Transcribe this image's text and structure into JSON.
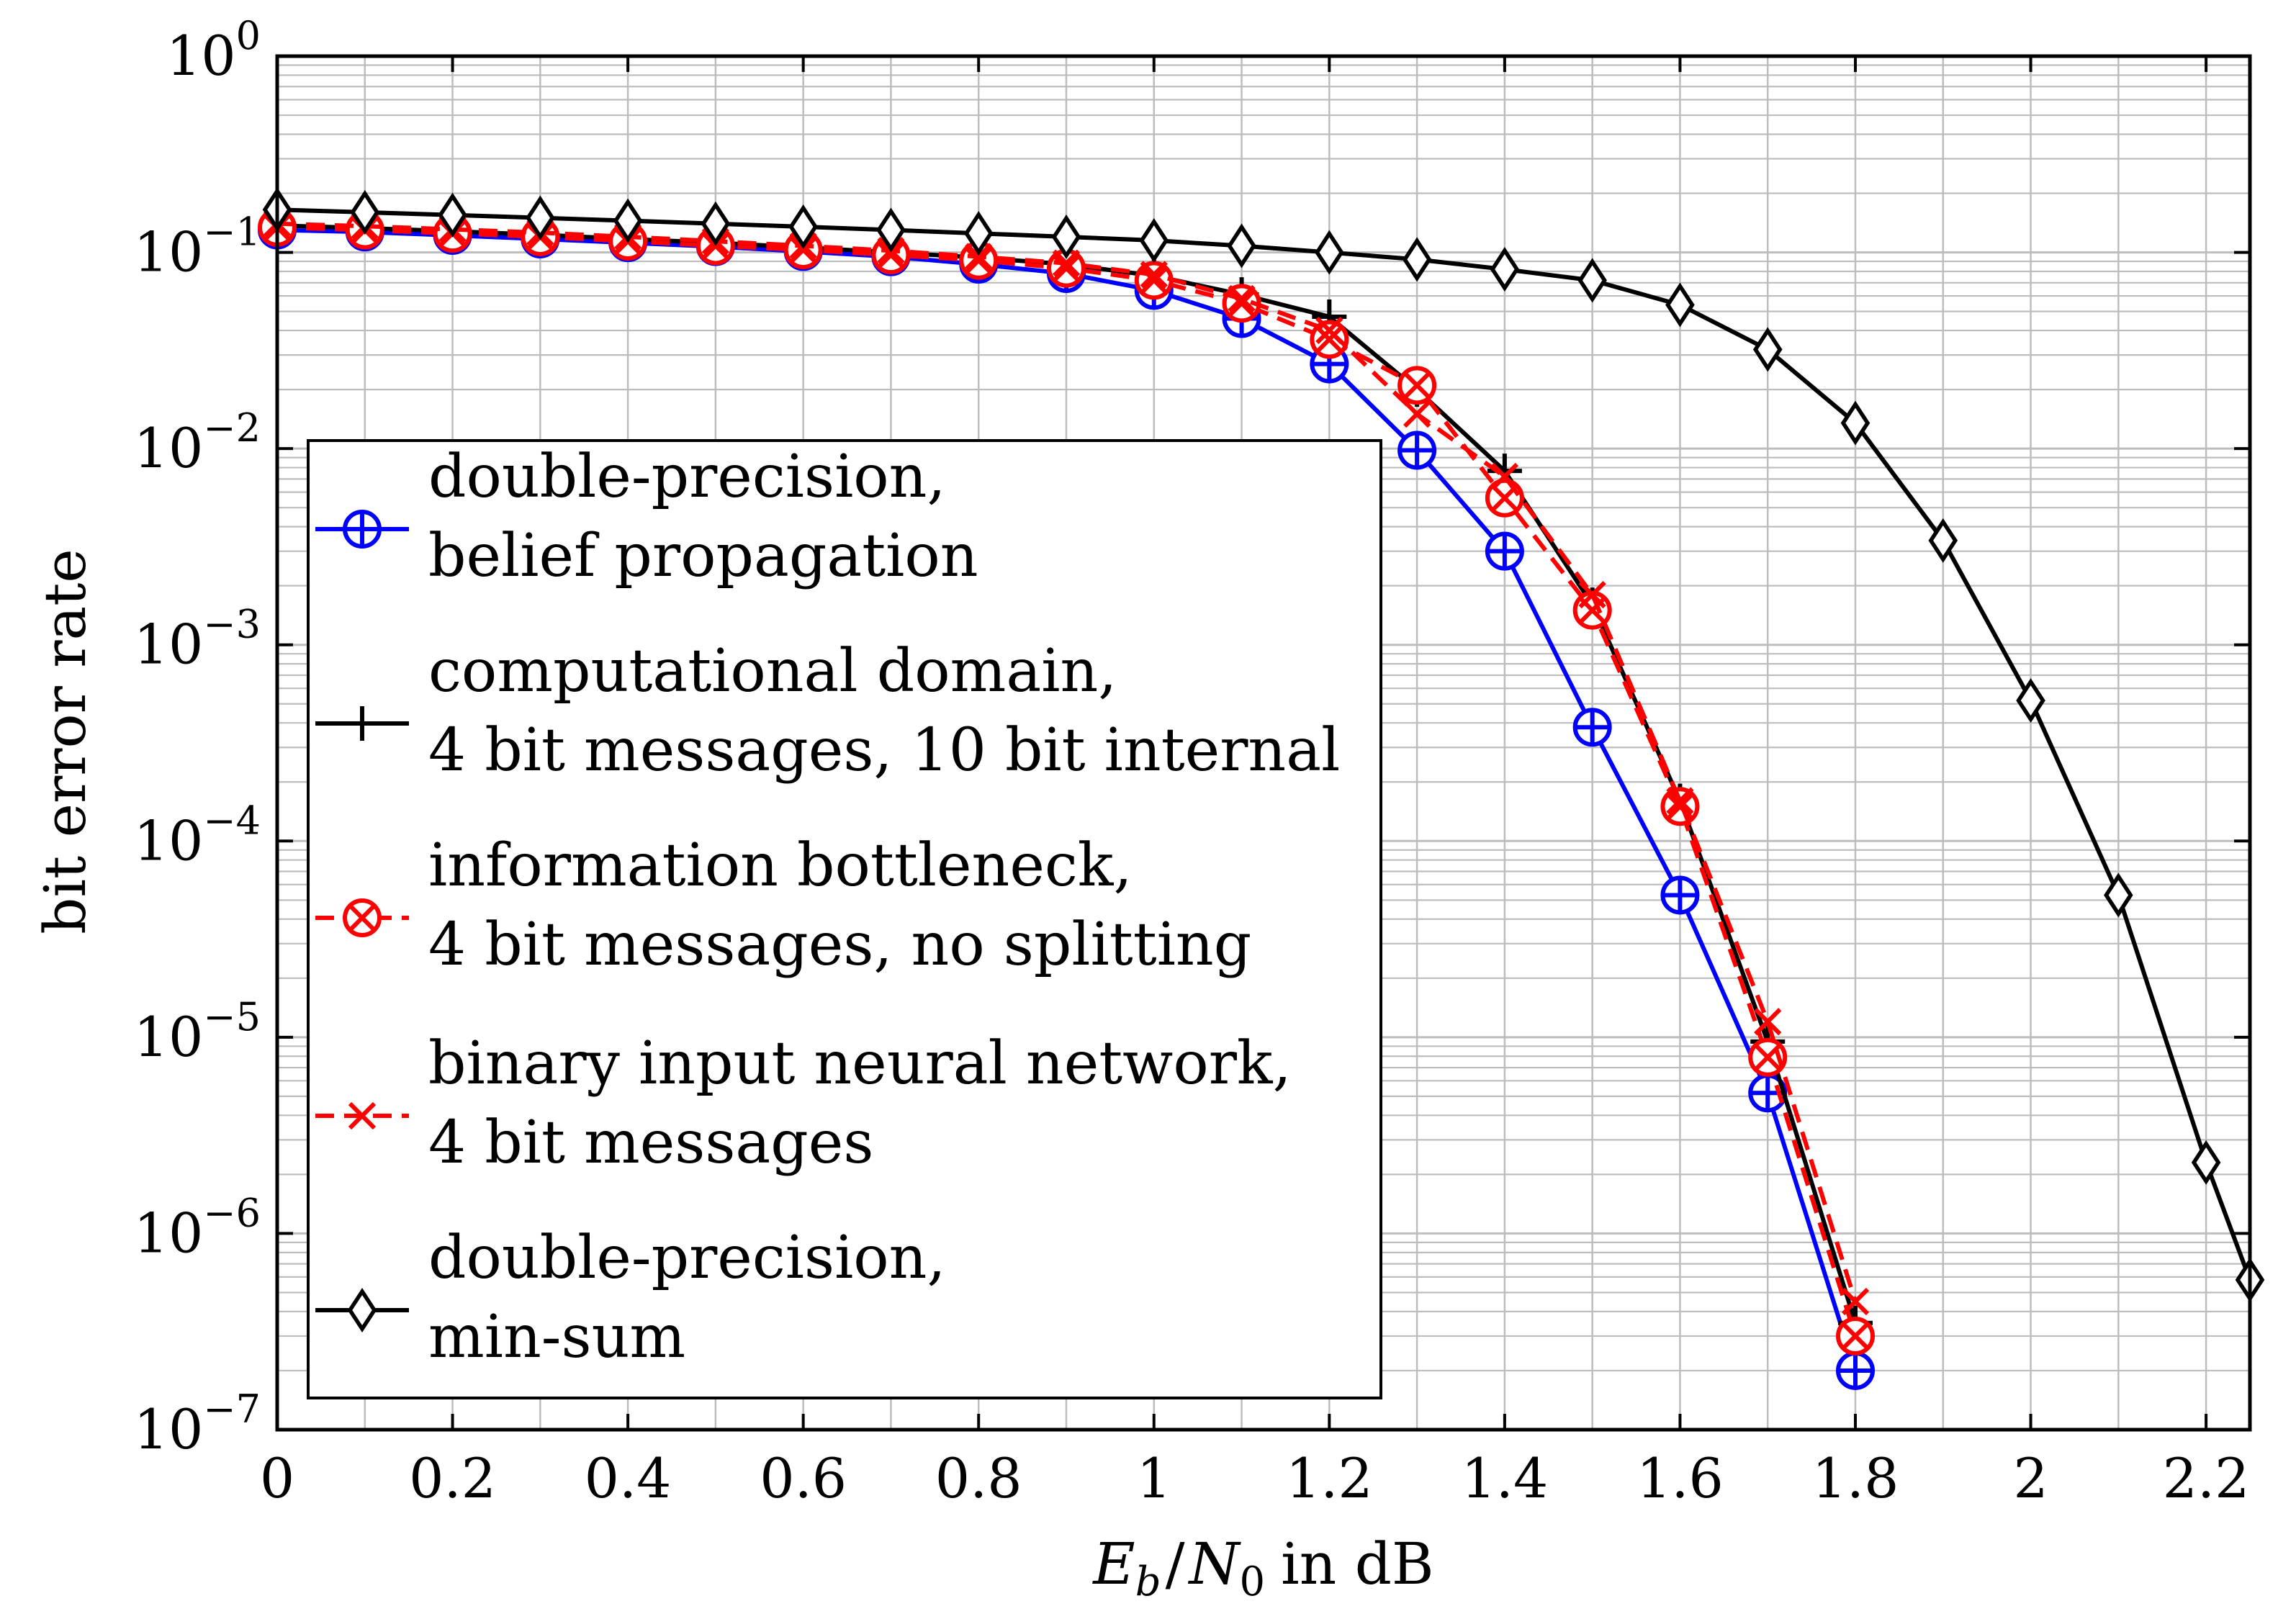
{
  "chart_data": {
    "type": "line",
    "y_scale": "log",
    "xlabel": {
      "E": "E",
      "E_sub": "b",
      "slash": "/",
      "N": "N",
      "N_sub": "0",
      "rest": "in dB"
    },
    "ylabel": "bit error rate",
    "xlim": [
      0,
      2.25
    ],
    "ylim": [
      1e-07,
      1
    ],
    "grid": true,
    "x_ticks": [
      {
        "value": 0,
        "label": "0"
      },
      {
        "value": 0.2,
        "label": "0.2"
      },
      {
        "value": 0.4,
        "label": "0.4"
      },
      {
        "value": 0.6,
        "label": "0.6"
      },
      {
        "value": 0.8,
        "label": "0.8"
      },
      {
        "value": 1,
        "label": "1"
      },
      {
        "value": 1.2,
        "label": "1.2"
      },
      {
        "value": 1.4,
        "label": "1.4"
      },
      {
        "value": 1.6,
        "label": "1.6"
      },
      {
        "value": 1.8,
        "label": "1.8"
      },
      {
        "value": 2,
        "label": "2"
      },
      {
        "value": 2.2,
        "label": "2.2"
      }
    ],
    "y_ticks": [
      {
        "exp": 0,
        "base": "10",
        "sup": "0"
      },
      {
        "exp": -1,
        "base": "10",
        "sup": "−1"
      },
      {
        "exp": -2,
        "base": "10",
        "sup": "−2"
      },
      {
        "exp": -3,
        "base": "10",
        "sup": "−3"
      },
      {
        "exp": -4,
        "base": "10",
        "sup": "−4"
      },
      {
        "exp": -5,
        "base": "10",
        "sup": "−5"
      },
      {
        "exp": -6,
        "base": "10",
        "sup": "−6"
      },
      {
        "exp": -7,
        "base": "10",
        "sup": "−7"
      }
    ],
    "legend_position": "lower-left",
    "series": [
      {
        "id": "bp",
        "name_lines": [
          "double-precision,",
          "belief propagation"
        ],
        "color": "#0000ff",
        "marker": "oplus",
        "dash": "solid",
        "x": [
          0,
          0.1,
          0.2,
          0.3,
          0.4,
          0.5,
          0.6,
          0.7,
          0.8,
          0.9,
          1.0,
          1.1,
          1.2,
          1.3,
          1.4,
          1.5,
          1.6,
          1.7,
          1.8
        ],
        "y": [
          0.13,
          0.127,
          0.122,
          0.117,
          0.112,
          0.107,
          0.101,
          0.095,
          0.087,
          0.078,
          0.064,
          0.046,
          0.027,
          0.0098,
          0.003,
          0.00038,
          5.3e-05,
          5.2e-06,
          2e-07
        ]
      },
      {
        "id": "cd",
        "name_lines": [
          "computational domain,",
          "4 bit messages, 10 bit internal"
        ],
        "color": "#000000",
        "marker": "plus",
        "dash": "solid",
        "x": [
          0,
          0.1,
          0.2,
          0.3,
          0.4,
          0.5,
          0.6,
          0.7,
          0.8,
          0.9,
          1.0,
          1.1,
          1.2,
          1.3,
          1.4,
          1.5,
          1.6,
          1.7,
          1.8
        ],
        "y": [
          0.137,
          0.133,
          0.128,
          0.123,
          0.117,
          0.112,
          0.106,
          0.1,
          0.094,
          0.087,
          0.076,
          0.061,
          0.047,
          0.02,
          0.0077,
          0.0016,
          0.00016,
          9.5e-06,
          3.5e-07
        ]
      },
      {
        "id": "ib",
        "name_lines": [
          "information bottleneck,",
          "4 bit messages, no splitting"
        ],
        "color": "#ff0000",
        "marker": "otimes",
        "dash": "dashed",
        "x": [
          0,
          0.1,
          0.2,
          0.3,
          0.4,
          0.5,
          0.6,
          0.7,
          0.8,
          0.9,
          1.0,
          1.1,
          1.2,
          1.3,
          1.4,
          1.5,
          1.6,
          1.7,
          1.8
        ],
        "y": [
          0.134,
          0.13,
          0.125,
          0.12,
          0.114,
          0.108,
          0.103,
          0.097,
          0.091,
          0.083,
          0.072,
          0.055,
          0.036,
          0.021,
          0.0056,
          0.0015,
          0.00015,
          7.9e-06,
          3e-07
        ]
      },
      {
        "id": "binn",
        "name_lines": [
          "binary input neural network,",
          "4 bit messages"
        ],
        "color": "#ff0000",
        "marker": "cross",
        "dash": "dashed",
        "x": [
          0,
          0.1,
          0.2,
          0.3,
          0.4,
          0.5,
          0.6,
          0.7,
          0.8,
          0.9,
          1.0,
          1.1,
          1.2,
          1.3,
          1.4,
          1.5,
          1.6,
          1.7,
          1.8
        ],
        "y": [
          0.14,
          0.136,
          0.131,
          0.126,
          0.12,
          0.114,
          0.108,
          0.102,
          0.095,
          0.088,
          0.077,
          0.058,
          0.04,
          0.015,
          0.0072,
          0.0018,
          0.00016,
          1.2e-05,
          4.5e-07
        ]
      },
      {
        "id": "ms",
        "name_lines": [
          "double-precision,",
          "min-sum"
        ],
        "color": "#000000",
        "marker": "diamond",
        "dash": "solid",
        "x": [
          0,
          0.1,
          0.2,
          0.3,
          0.4,
          0.5,
          0.6,
          0.7,
          0.8,
          0.9,
          1.0,
          1.1,
          1.2,
          1.3,
          1.4,
          1.5,
          1.6,
          1.7,
          1.8,
          1.9,
          2.0,
          2.1,
          2.2,
          2.25
        ],
        "y": [
          0.165,
          0.16,
          0.155,
          0.15,
          0.145,
          0.14,
          0.135,
          0.13,
          0.125,
          0.12,
          0.115,
          0.108,
          0.1,
          0.092,
          0.082,
          0.072,
          0.054,
          0.032,
          0.0135,
          0.0034,
          0.00052,
          5.3e-05,
          2.3e-06,
          5.8e-07
        ]
      }
    ]
  }
}
